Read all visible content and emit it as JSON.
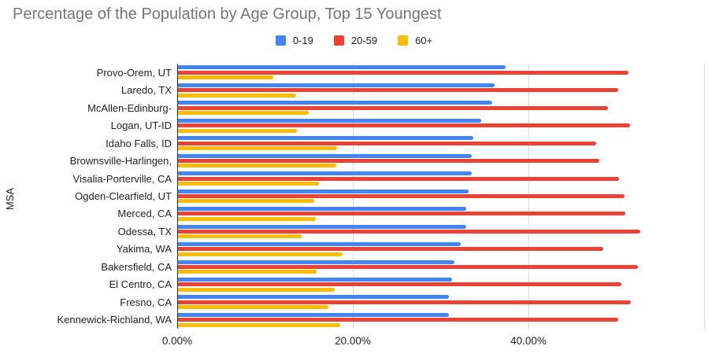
{
  "chart_data": {
    "type": "bar",
    "orientation": "horizontal",
    "title": "Percentage of the Population by Age Group, Top 15 Youngest",
    "xlabel": "",
    "ylabel": "MSA",
    "xlim": [
      0,
      60
    ],
    "x_tick_values": [
      0,
      20,
      40
    ],
    "x_tick_labels": [
      "0.00%",
      "20.00%",
      "40.00%"
    ],
    "grid": true,
    "legend_position": "top-center",
    "categories": [
      "Provo-Orem, UT",
      "Laredo, TX",
      "McAllen-Edinburg-",
      "Logan, UT-ID",
      "Idaho Falls, ID",
      "Brownsville-Harlingen,",
      "Visalia-Porterville, CA",
      "Ogden-Clearfield, UT",
      "Merced, CA",
      "Odessa, TX",
      "Yakima, WA",
      "Bakersfield, CA",
      "El Centro, CA",
      "Fresno, CA",
      "Kennewick-Richland, WA"
    ],
    "series": [
      {
        "name": "0-19",
        "color": "#4285F4",
        "values": [
          37.4,
          36.1,
          35.9,
          34.6,
          33.7,
          33.5,
          33.5,
          33.2,
          32.9,
          32.9,
          32.3,
          31.6,
          31.3,
          30.9,
          30.9
        ]
      },
      {
        "name": "20-59",
        "color": "#EA4335",
        "values": [
          51.4,
          50.2,
          49.1,
          51.6,
          47.7,
          48.1,
          50.3,
          50.9,
          51.0,
          52.7,
          48.5,
          52.5,
          50.6,
          51.7,
          50.2
        ]
      },
      {
        "name": "60+",
        "color": "#FBBC04",
        "values": [
          10.9,
          13.5,
          15.0,
          13.6,
          18.2,
          18.1,
          16.1,
          15.6,
          15.8,
          14.2,
          18.8,
          15.9,
          17.9,
          17.2,
          18.6
        ]
      }
    ]
  }
}
